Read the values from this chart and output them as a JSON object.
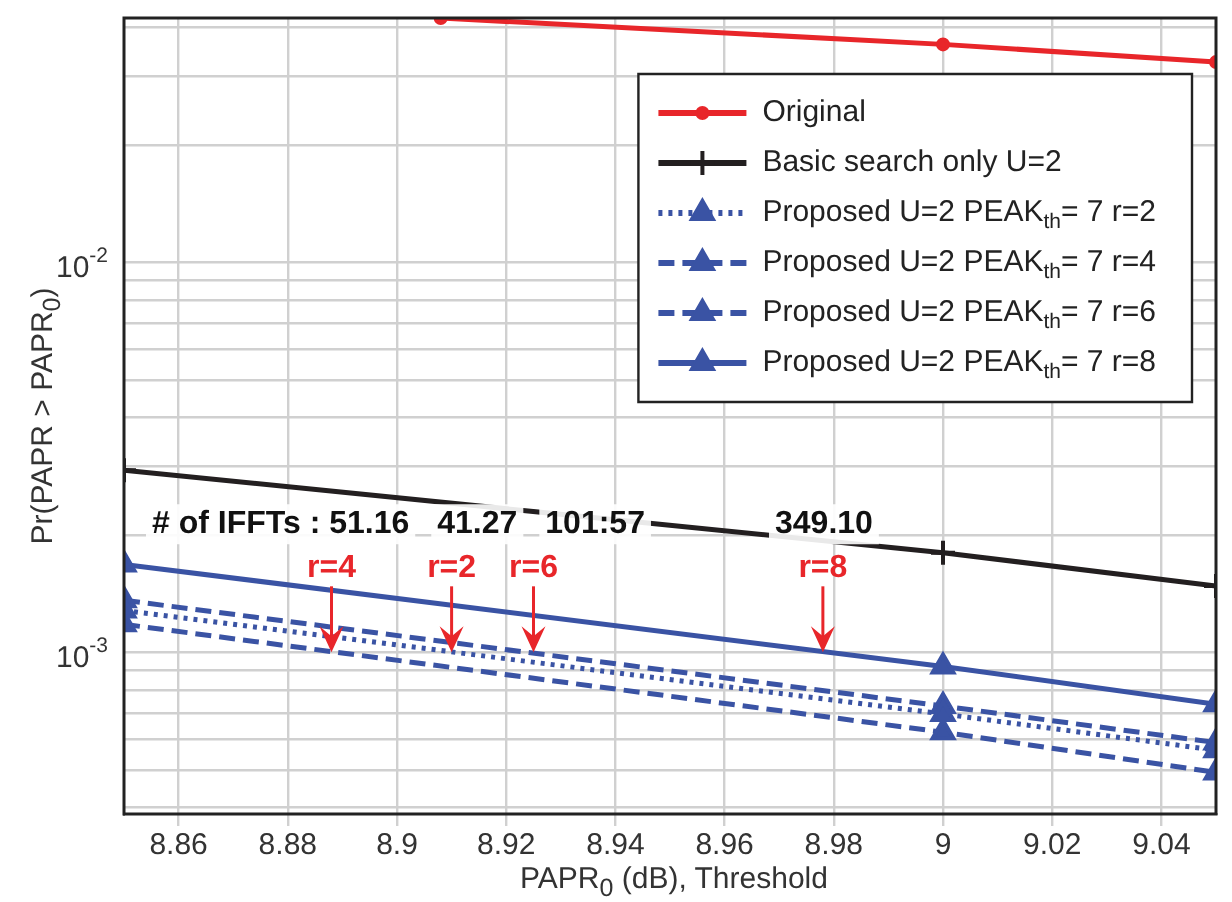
{
  "chart_data": {
    "type": "line",
    "xlabel": "PAPR$_{0}$ (dB), Threshold",
    "ylabel": "Pr(PAPR > PAPR$_{0}$)",
    "log": "y",
    "grid": true,
    "legend": "top right",
    "xlim": [
      8.85,
      9.05
    ],
    "xticks": [
      8.86,
      8.88,
      8.9,
      8.92,
      8.94,
      8.96,
      8.98,
      9,
      9.02,
      9.04
    ],
    "ylim": [
      0.000385,
      0.0423
    ],
    "yticks": [
      {
        "value": 0.0004,
        "label": null
      },
      {
        "value": 0.0005,
        "label": null
      },
      {
        "value": 0.0006,
        "label": null
      },
      {
        "value": 0.0007,
        "label": null
      },
      {
        "value": 0.0008,
        "label": null
      },
      {
        "value": 0.0009,
        "label": null
      },
      {
        "value": 0.001,
        "label": "10$^{-3}$"
      },
      {
        "value": 0.002,
        "label": null
      },
      {
        "value": 0.003,
        "label": null
      },
      {
        "value": 0.004,
        "label": null
      },
      {
        "value": 0.005,
        "label": null
      },
      {
        "value": 0.006,
        "label": null
      },
      {
        "value": 0.007,
        "label": null
      },
      {
        "value": 0.008,
        "label": null
      },
      {
        "value": 0.009,
        "label": null
      },
      {
        "value": 0.01,
        "label": "10$^{-2}$"
      },
      {
        "value": 0.02,
        "label": null
      },
      {
        "value": 0.03,
        "label": null
      },
      {
        "value": 0.04,
        "label": null
      }
    ],
    "series": [
      {
        "name": "Original",
        "color": "#e8262a",
        "marker": "circle",
        "line_style": "solid",
        "x": [
          8.908,
          9,
          9.05
        ],
        "values": [
          0.0423,
          0.0362,
          0.0326
        ]
      },
      {
        "name": "Basic search only U=2",
        "color": "#231f20",
        "marker": "cross",
        "line_style": "solid",
        "x": [
          8.85,
          9,
          9.05
        ],
        "values": [
          0.00293,
          0.0018,
          0.00148
        ]
      },
      {
        "name": "Proposed U=2 PEAK$_{th}$= 7 r=2",
        "color": "#3a53a4",
        "marker": "triangle",
        "line_style": "dotted",
        "x": [
          8.85,
          9,
          9.05
        ],
        "values": [
          0.00128,
          0.000695,
          0.000561
        ]
      },
      {
        "name": "Proposed U=2 PEAK$_{th}$= 7 r=4",
        "color": "#3a53a4",
        "marker": "triangle",
        "line_style": "dashed",
        "x": [
          8.85,
          9,
          9.05
        ],
        "values": [
          0.00118,
          0.000624,
          0.000492
        ]
      },
      {
        "name": "Proposed U=2 PEAK$_{th}$= 7 r=6",
        "color": "#3a53a4",
        "marker": "triangle",
        "line_style": "dashed",
        "x": [
          8.85,
          9,
          9.05
        ],
        "values": [
          0.00136,
          0.000728,
          0.000587
        ]
      },
      {
        "name": "Proposed U=2 PEAK$_{th}$= 7 r=8",
        "color": "#3a53a4",
        "marker": "triangle",
        "line_style": "solid",
        "x": [
          8.85,
          9,
          9.05
        ],
        "values": [
          0.00168,
          0.00092,
          0.000736
        ]
      }
    ],
    "annotations": [
      {
        "text": "r=4",
        "x": 8.888,
        "y": 0.001
      },
      {
        "text": "r=2",
        "x": 8.91,
        "y": 0.001
      },
      {
        "text": "r=6",
        "x": 8.925,
        "y": 0.001
      },
      {
        "text": "r=8",
        "x": 8.978,
        "y": 0.001
      },
      "# of IFFTs : 51.16",
      "41.27",
      "101:57",
      "349.10"
    ]
  }
}
